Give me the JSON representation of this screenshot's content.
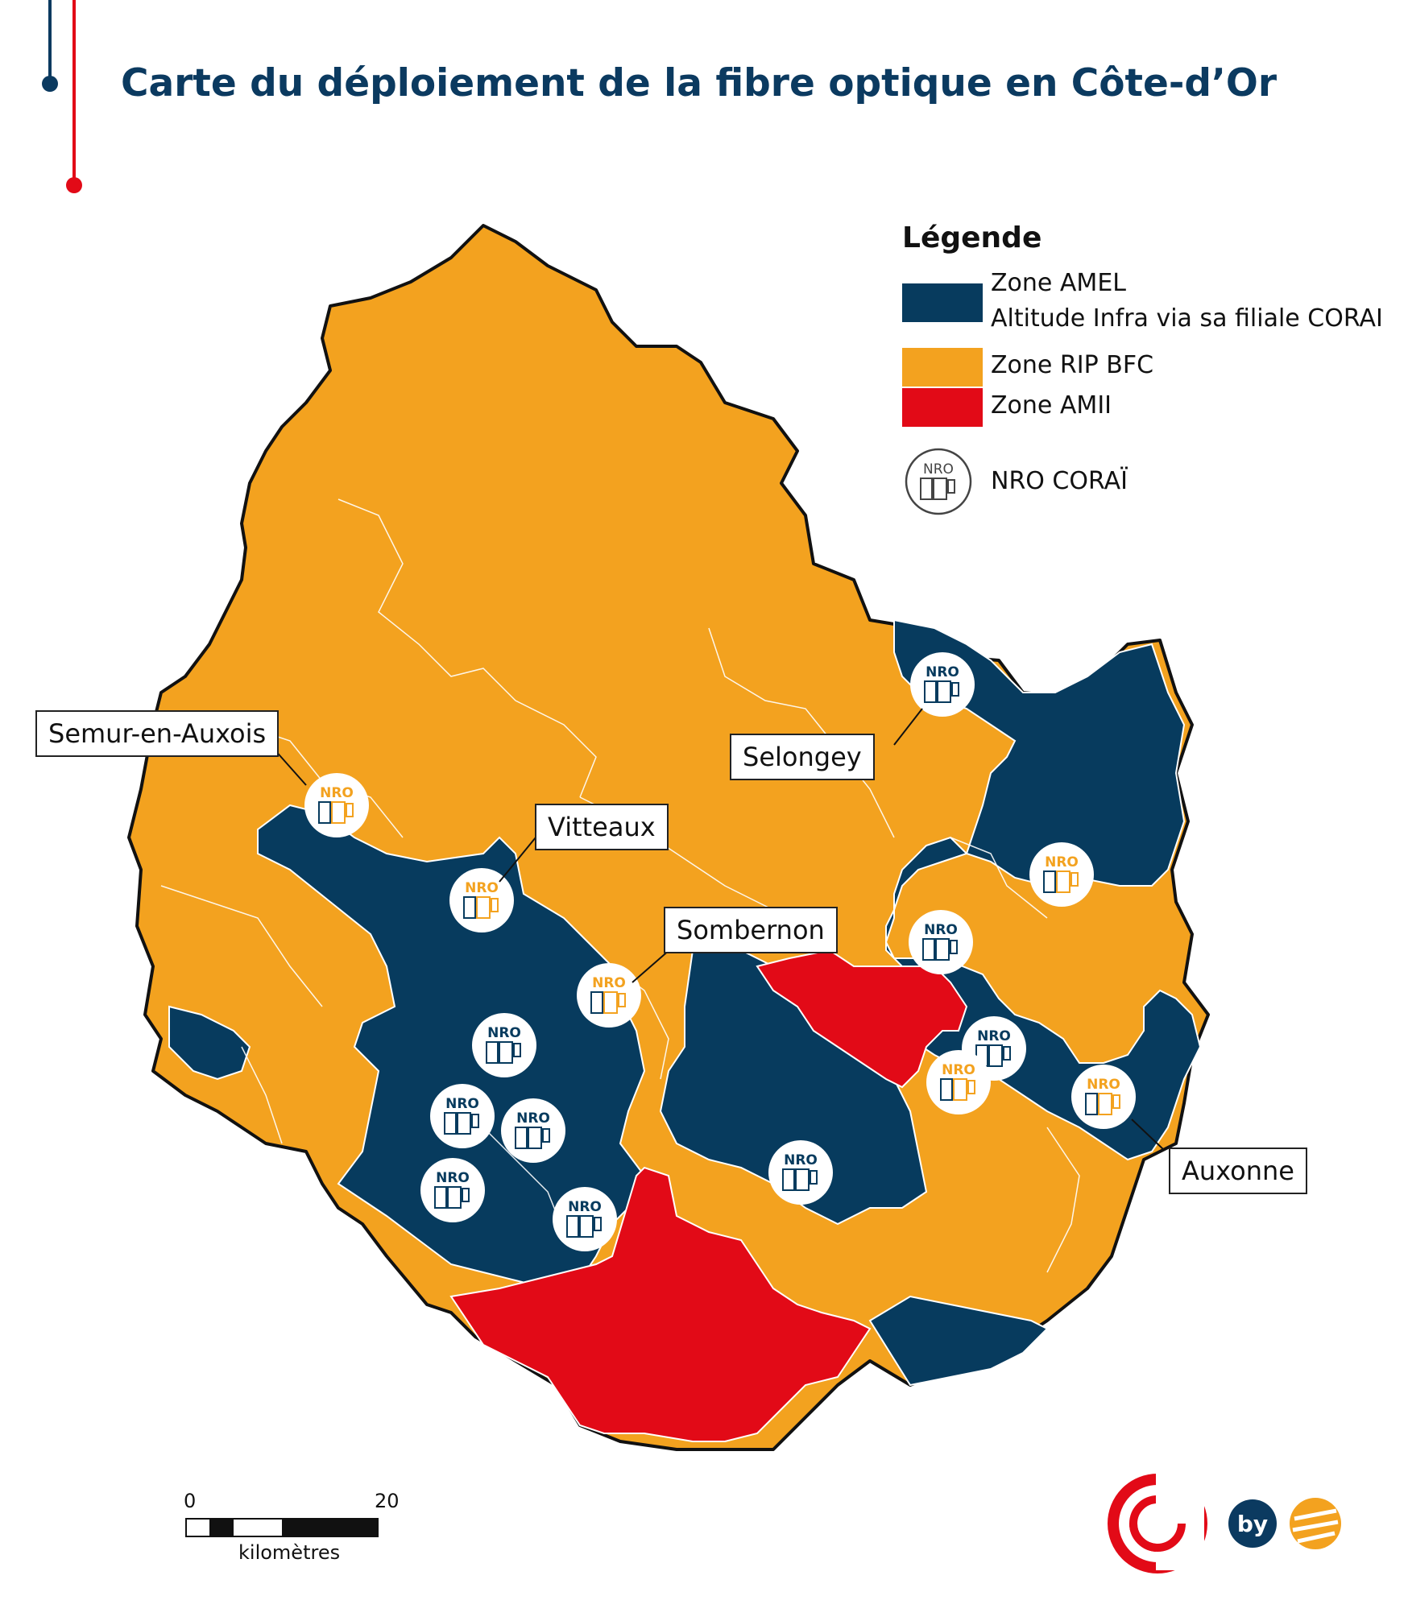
{
  "title": "Carte du déploiement de la fibre optique en Côte-d’Or",
  "legend": {
    "title": "Légende",
    "items": [
      {
        "label_line1": "Zone AMEL",
        "label_line2": "Altitude Infra via sa filiale CORAI",
        "color": "#073b5e"
      },
      {
        "label_line1": "Zone RIP BFC",
        "color": "#f3a21f"
      },
      {
        "label_line1": "Zone AMII",
        "color": "#e20a17"
      }
    ],
    "nro_label": "NRO CORAÏ",
    "nro_icon_text": "NRO"
  },
  "places": [
    "Semur-en-Auxois",
    "Vitteaux",
    "Selongey",
    "Sombernon",
    "Auxonne"
  ],
  "scale": {
    "start": "0",
    "end": "20",
    "unit": "kilomètres"
  },
  "logos": {
    "by": "by"
  },
  "colors": {
    "amel": "#073b5e",
    "rip": "#f3a21f",
    "amii": "#e20a17",
    "title": "#0b3a60"
  }
}
